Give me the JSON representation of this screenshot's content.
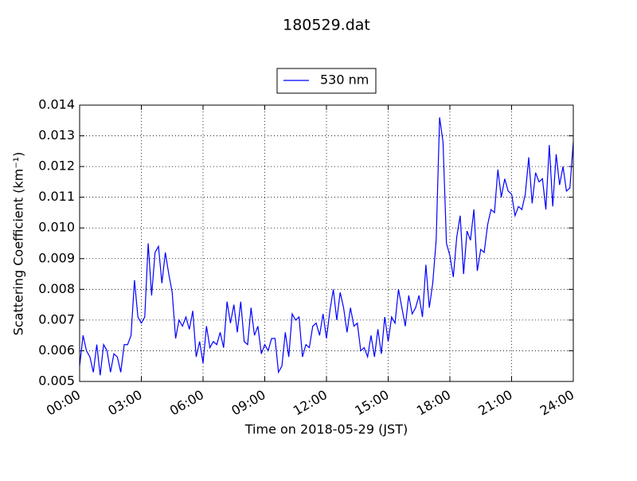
{
  "chart_data": {
    "type": "line",
    "title": "180529.dat",
    "x_label": "Time on 2018-05-29 (JST)",
    "y_label": "Scattering Coefficient (km⁻¹)",
    "xlim": [
      0,
      1440
    ],
    "xticks": [
      {
        "value": 0,
        "label": "00:00"
      },
      {
        "value": 180,
        "label": "03:00"
      },
      {
        "value": 360,
        "label": "06:00"
      },
      {
        "value": 540,
        "label": "09:00"
      },
      {
        "value": 720,
        "label": "12:00"
      },
      {
        "value": 900,
        "label": "15:00"
      },
      {
        "value": 1080,
        "label": "18:00"
      },
      {
        "value": 1260,
        "label": "21:00"
      },
      {
        "value": 1440,
        "label": "24:00"
      }
    ],
    "ylim": [
      0.005,
      0.014
    ],
    "yticks": [
      0.005,
      0.006,
      0.007,
      0.008,
      0.009,
      {
        "value": 0.01,
        "label": "0.010"
      },
      0.011,
      0.012,
      0.013,
      0.014
    ],
    "grid": true,
    "legend": "top",
    "x": [
      0,
      10,
      20,
      30,
      40,
      50,
      60,
      70,
      80,
      90,
      100,
      110,
      120,
      130,
      140,
      150,
      160,
      170,
      180,
      190,
      200,
      210,
      220,
      230,
      240,
      250,
      260,
      270,
      280,
      290,
      300,
      310,
      320,
      330,
      340,
      350,
      360,
      370,
      380,
      390,
      400,
      410,
      420,
      430,
      440,
      450,
      460,
      470,
      480,
      490,
      500,
      510,
      520,
      530,
      540,
      550,
      560,
      570,
      580,
      590,
      600,
      610,
      620,
      630,
      640,
      650,
      660,
      670,
      680,
      690,
      700,
      710,
      720,
      730,
      740,
      750,
      760,
      770,
      780,
      790,
      800,
      810,
      820,
      830,
      840,
      850,
      860,
      870,
      880,
      890,
      900,
      910,
      920,
      930,
      940,
      950,
      960,
      970,
      980,
      990,
      1000,
      1010,
      1020,
      1030,
      1040,
      1050,
      1060,
      1070,
      1080,
      1090,
      1100,
      1110,
      1120,
      1130,
      1140,
      1150,
      1160,
      1170,
      1180,
      1190,
      1200,
      1210,
      1220,
      1230,
      1240,
      1250,
      1260,
      1270,
      1280,
      1290,
      1300,
      1310,
      1320,
      1330,
      1340,
      1350,
      1360,
      1370,
      1380,
      1390,
      1400,
      1410,
      1420,
      1430,
      1440
    ],
    "series": [
      {
        "name": "530 nm",
        "color": "#0000ff",
        "values": [
          0.0055,
          0.0065,
          0.006,
          0.0058,
          0.0053,
          0.0062,
          0.0052,
          0.0062,
          0.006,
          0.0053,
          0.0059,
          0.0058,
          0.0053,
          0.0062,
          0.0062,
          0.0065,
          0.0083,
          0.0071,
          0.0069,
          0.0071,
          0.0095,
          0.0078,
          0.0092,
          0.0094,
          0.0082,
          0.0092,
          0.0085,
          0.0079,
          0.0064,
          0.007,
          0.0068,
          0.0071,
          0.0067,
          0.0073,
          0.0058,
          0.0063,
          0.0056,
          0.0068,
          0.0061,
          0.0063,
          0.0062,
          0.0066,
          0.0061,
          0.0076,
          0.0069,
          0.0075,
          0.0066,
          0.0076,
          0.0063,
          0.0062,
          0.0074,
          0.0065,
          0.0068,
          0.0059,
          0.0062,
          0.006,
          0.0064,
          0.0064,
          0.0053,
          0.0055,
          0.0066,
          0.0058,
          0.0072,
          0.007,
          0.0071,
          0.0058,
          0.0062,
          0.0061,
          0.0068,
          0.0069,
          0.0065,
          0.0072,
          0.0064,
          0.0073,
          0.008,
          0.007,
          0.0079,
          0.0074,
          0.0066,
          0.0074,
          0.0068,
          0.0069,
          0.006,
          0.0061,
          0.0058,
          0.0065,
          0.0058,
          0.0067,
          0.0059,
          0.0071,
          0.0063,
          0.0071,
          0.0069,
          0.008,
          0.0074,
          0.0068,
          0.0078,
          0.0072,
          0.0074,
          0.0078,
          0.0071,
          0.0088,
          0.0074,
          0.0082,
          0.0096,
          0.0136,
          0.0128,
          0.0095,
          0.0091,
          0.0084,
          0.0097,
          0.0104,
          0.0085,
          0.0099,
          0.0096,
          0.0106,
          0.0086,
          0.0093,
          0.0092,
          0.0101,
          0.0106,
          0.0105,
          0.0119,
          0.011,
          0.0116,
          0.0112,
          0.0111,
          0.0104,
          0.0107,
          0.0106,
          0.0111,
          0.0123,
          0.0108,
          0.0118,
          0.0115,
          0.0116,
          0.0106,
          0.0127,
          0.0107,
          0.0124,
          0.0114,
          0.012,
          0.0112,
          0.0113,
          0.0128
        ]
      }
    ]
  }
}
